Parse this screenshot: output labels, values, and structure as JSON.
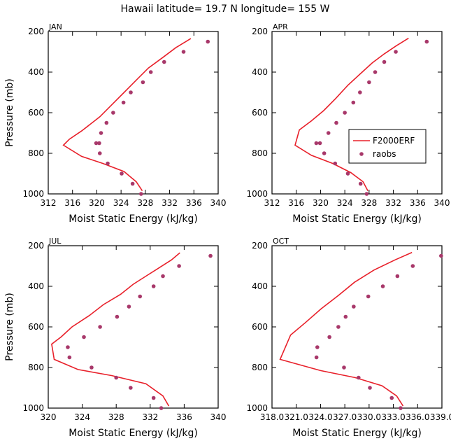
{
  "title": "Hawaii  latitude= 19.7 N longitude= 155 W",
  "chart_data": [
    {
      "type": "line",
      "panel": "JAN",
      "xlabel": "Moist Static Energy (kJ/kg)",
      "ylabel": "Pressure (mb)",
      "xlim": [
        312,
        340
      ],
      "ylim": [
        200,
        1000
      ],
      "y_inverted": true,
      "xticks": [
        312,
        316,
        320,
        324,
        328,
        332,
        336,
        340
      ],
      "xtick_labels": [
        "312",
        "316",
        "320",
        "324",
        "328",
        "332",
        "336",
        "340"
      ],
      "yticks": [
        200,
        400,
        600,
        800,
        1000
      ],
      "ytick_labels": [
        "200",
        "400",
        "600",
        "800",
        "1000"
      ],
      "series": [
        {
          "name": "F2000ERF",
          "kind": "line",
          "x": [
            335.5,
            333,
            331,
            328.5,
            326.5,
            324.5,
            322.5,
            320.5,
            317.5,
            315.5,
            314.5,
            317.5,
            321,
            324.5,
            326.5,
            327.5
          ],
          "y": [
            235,
            280,
            325,
            380,
            440,
            500,
            560,
            620,
            690,
            730,
            760,
            815,
            850,
            890,
            940,
            985
          ]
        },
        {
          "name": "raobs",
          "kind": "scatter",
          "x": [
            338.3,
            334.3,
            331.1,
            328.9,
            327.6,
            325.6,
            324.4,
            322.7,
            321.6,
            320.7,
            320.4,
            319.9,
            320.5,
            321.8,
            324.1,
            325.9,
            327.3
          ],
          "y": [
            250,
            300,
            350,
            400,
            450,
            500,
            550,
            600,
            650,
            700,
            750,
            750,
            800,
            850,
            900,
            950,
            1000
          ]
        }
      ]
    },
    {
      "type": "line",
      "panel": "APR",
      "xlabel": "Moist Static Energy (kJ/kg)",
      "ylabel": "",
      "xlim": [
        312,
        340
      ],
      "ylim": [
        200,
        1000
      ],
      "y_inverted": true,
      "xticks": [
        312,
        316,
        320,
        324,
        328,
        332,
        336,
        340
      ],
      "xtick_labels": [
        "312",
        "316",
        "320",
        "324",
        "328",
        "332",
        "336",
        "340"
      ],
      "yticks": [
        200,
        400,
        600,
        800,
        1000
      ],
      "ytick_labels": [
        "200",
        "400",
        "600",
        "800",
        "1000"
      ],
      "legend": {
        "position": "right",
        "entries": [
          "F2000ERF",
          "raobs"
        ]
      },
      "series": [
        {
          "name": "F2000ERF",
          "kind": "line",
          "x": [
            334.5,
            332.5,
            330.5,
            328.5,
            326.5,
            324.5,
            322.5,
            320.5,
            318.5,
            316.5,
            315.8,
            318.5,
            322,
            325,
            327,
            327.8
          ],
          "y": [
            233,
            270,
            310,
            355,
            410,
            465,
            530,
            590,
            640,
            685,
            760,
            810,
            850,
            895,
            940,
            985
          ]
        },
        {
          "name": "raobs",
          "kind": "scatter",
          "x": [
            337.5,
            332.4,
            330.5,
            329.0,
            328.0,
            326.5,
            325.4,
            324.0,
            322.6,
            321.3,
            319.9,
            319.3,
            320.6,
            322.4,
            324.5,
            326.6,
            327.6
          ],
          "y": [
            250,
            300,
            350,
            400,
            450,
            500,
            550,
            600,
            650,
            700,
            750,
            750,
            800,
            850,
            900,
            950,
            1000
          ]
        }
      ]
    },
    {
      "type": "line",
      "panel": "JUL",
      "xlabel": "Moist Static Energy (kJ/kg)",
      "ylabel": "Pressure (mb)",
      "xlim": [
        320,
        340
      ],
      "ylim": [
        200,
        1000
      ],
      "y_inverted": true,
      "xticks": [
        320,
        324,
        328,
        332,
        336,
        340
      ],
      "xtick_labels": [
        "320",
        "324",
        "328",
        "332",
        "336",
        "340"
      ],
      "yticks": [
        200,
        400,
        600,
        800,
        1000
      ],
      "ytick_labels": [
        "200",
        "400",
        "600",
        "800",
        "1000"
      ],
      "series": [
        {
          "name": "F2000ERF",
          "kind": "line",
          "x": [
            335.5,
            334.5,
            333,
            331.5,
            330,
            328.5,
            326.5,
            324.8,
            322.8,
            321.5,
            320.4,
            320.7,
            323.5,
            327.5,
            331.5,
            333.5,
            334.2
          ],
          "y": [
            235,
            270,
            310,
            350,
            390,
            440,
            490,
            545,
            600,
            650,
            685,
            760,
            810,
            840,
            880,
            940,
            990
          ]
        },
        {
          "name": "raobs",
          "kind": "scatter",
          "x": [
            339.1,
            335.4,
            333.5,
            332.4,
            330.8,
            329.5,
            328.1,
            326.1,
            324.2,
            322.3,
            322.5,
            325.1,
            328.0,
            329.7,
            332.4,
            333.3
          ],
          "y": [
            250,
            300,
            350,
            400,
            450,
            500,
            550,
            600,
            650,
            700,
            750,
            800,
            850,
            900,
            950,
            1000
          ]
        }
      ]
    },
    {
      "type": "line",
      "panel": "OCT",
      "xlabel": "Moist Static Energy (kJ/kg)",
      "ylabel": "",
      "xlim": [
        318.0,
        339.0
      ],
      "ylim": [
        200,
        1000
      ],
      "y_inverted": true,
      "xticks": [
        318.0,
        321.0,
        324.0,
        327.0,
        330.0,
        333.0,
        336.0,
        339.0
      ],
      "xtick_labels": [
        "318.0",
        "321.0",
        "324.0",
        "327.0",
        "330.0",
        "333.0",
        "336.0",
        "339.0"
      ],
      "yticks": [
        200,
        400,
        600,
        800,
        1000
      ],
      "ytick_labels": [
        "200",
        "400",
        "600",
        "800",
        "1000"
      ],
      "series": [
        {
          "name": "F2000ERF",
          "kind": "line",
          "x": [
            335.3,
            333.2,
            330.6,
            328.2,
            326.2,
            324.1,
            322.1,
            320.3,
            319.0,
            324.0,
            328.3,
            331.6,
            333.4,
            334.2
          ],
          "y": [
            233,
            270,
            320,
            380,
            445,
            510,
            580,
            640,
            760,
            815,
            850,
            890,
            940,
            990
          ]
        },
        {
          "name": "raobs",
          "kind": "scatter",
          "x": [
            338.9,
            335.4,
            333.5,
            331.7,
            329.9,
            328.1,
            327.1,
            326.2,
            325.1,
            323.6,
            323.5,
            326.9,
            328.7,
            330.1,
            332.8,
            333.9
          ],
          "y": [
            250,
            300,
            350,
            400,
            450,
            500,
            550,
            600,
            650,
            700,
            750,
            800,
            850,
            900,
            950,
            1000
          ]
        }
      ]
    }
  ],
  "colors": {
    "model": "#e8202a",
    "obs": "#a8386a"
  }
}
